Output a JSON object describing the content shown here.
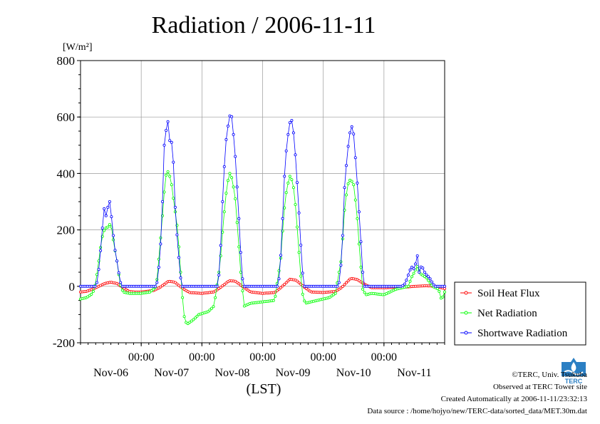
{
  "chart_data": {
    "type": "line",
    "title": "Radiation / 2006-11-11",
    "ylabel": "[W/m²]",
    "xlabel": "(LST)",
    "ylim": [
      -200,
      800
    ],
    "yticks": [
      -200,
      0,
      200,
      400,
      600,
      800
    ],
    "xlim": [
      0,
      6
    ],
    "xtick_time_label": "00:00",
    "xticks": [
      1,
      2,
      3,
      4,
      5
    ],
    "day_labels": [
      "Nov-06",
      "Nov-07",
      "Nov-08",
      "Nov-09",
      "Nov-10",
      "Nov-11"
    ],
    "x_unit": "days since Nov-06 00:00",
    "grid": true,
    "legend_position": "right",
    "series": [
      {
        "name": "Soil Heat Flux",
        "color": "#ff0000",
        "points": [
          [
            0,
            -20
          ],
          [
            0.1,
            -18
          ],
          [
            0.2,
            -10
          ],
          [
            0.3,
            0
          ],
          [
            0.4,
            10
          ],
          [
            0.5,
            15
          ],
          [
            0.6,
            10
          ],
          [
            0.7,
            -5
          ],
          [
            0.8,
            -18
          ],
          [
            0.9,
            -20
          ],
          [
            1.0,
            -20
          ],
          [
            1.2,
            -15
          ],
          [
            1.3,
            -5
          ],
          [
            1.45,
            18
          ],
          [
            1.55,
            15
          ],
          [
            1.7,
            -10
          ],
          [
            1.8,
            -22
          ],
          [
            2.0,
            -25
          ],
          [
            2.2,
            -20
          ],
          [
            2.3,
            -5
          ],
          [
            2.45,
            20
          ],
          [
            2.55,
            18
          ],
          [
            2.7,
            -5
          ],
          [
            2.8,
            -20
          ],
          [
            3.0,
            -25
          ],
          [
            3.2,
            -22
          ],
          [
            3.3,
            -5
          ],
          [
            3.45,
            25
          ],
          [
            3.55,
            22
          ],
          [
            3.7,
            -5
          ],
          [
            3.8,
            -20
          ],
          [
            4.0,
            -22
          ],
          [
            4.2,
            -18
          ],
          [
            4.3,
            -5
          ],
          [
            4.45,
            28
          ],
          [
            4.55,
            25
          ],
          [
            4.7,
            5
          ],
          [
            4.8,
            -5
          ],
          [
            5.0,
            -5
          ],
          [
            5.4,
            -2
          ],
          [
            5.5,
            0
          ],
          [
            5.7,
            2
          ],
          [
            5.85,
            0
          ],
          [
            6.0,
            -8
          ]
        ]
      },
      {
        "name": "Net Radiation",
        "color": "#00ff00",
        "points": [
          [
            0,
            -45
          ],
          [
            0.1,
            -40
          ],
          [
            0.2,
            -25
          ],
          [
            0.25,
            10
          ],
          [
            0.3,
            90
          ],
          [
            0.35,
            170
          ],
          [
            0.4,
            205
          ],
          [
            0.45,
            210
          ],
          [
            0.5,
            225
          ],
          [
            0.55,
            150
          ],
          [
            0.6,
            90
          ],
          [
            0.65,
            10
          ],
          [
            0.7,
            -20
          ],
          [
            0.8,
            -25
          ],
          [
            1.0,
            -25
          ],
          [
            1.15,
            -20
          ],
          [
            1.25,
            0
          ],
          [
            1.3,
            120
          ],
          [
            1.35,
            250
          ],
          [
            1.4,
            390
          ],
          [
            1.45,
            410
          ],
          [
            1.5,
            360
          ],
          [
            1.55,
            280
          ],
          [
            1.6,
            200
          ],
          [
            1.65,
            50
          ],
          [
            1.7,
            -100
          ],
          [
            1.75,
            -135
          ],
          [
            1.85,
            -120
          ],
          [
            1.95,
            -100
          ],
          [
            2.1,
            -90
          ],
          [
            2.2,
            -70
          ],
          [
            2.3,
            80
          ],
          [
            2.35,
            220
          ],
          [
            2.4,
            330
          ],
          [
            2.45,
            405
          ],
          [
            2.5,
            380
          ],
          [
            2.55,
            310
          ],
          [
            2.6,
            170
          ],
          [
            2.65,
            20
          ],
          [
            2.7,
            -70
          ],
          [
            2.8,
            -60
          ],
          [
            3.0,
            -55
          ],
          [
            3.2,
            -50
          ],
          [
            3.3,
            100
          ],
          [
            3.35,
            260
          ],
          [
            3.4,
            350
          ],
          [
            3.45,
            390
          ],
          [
            3.5,
            370
          ],
          [
            3.55,
            270
          ],
          [
            3.6,
            120
          ],
          [
            3.65,
            -20
          ],
          [
            3.7,
            -60
          ],
          [
            3.9,
            -50
          ],
          [
            4.1,
            -40
          ],
          [
            4.2,
            -25
          ],
          [
            4.3,
            100
          ],
          [
            4.35,
            270
          ],
          [
            4.4,
            360
          ],
          [
            4.45,
            380
          ],
          [
            4.5,
            360
          ],
          [
            4.55,
            270
          ],
          [
            4.6,
            120
          ],
          [
            4.65,
            -10
          ],
          [
            4.7,
            -30
          ],
          [
            4.8,
            -25
          ],
          [
            5.0,
            -30
          ],
          [
            5.2,
            -10
          ],
          [
            5.4,
            0
          ],
          [
            5.45,
            30
          ],
          [
            5.5,
            50
          ],
          [
            5.55,
            70
          ],
          [
            5.6,
            45
          ],
          [
            5.7,
            30
          ],
          [
            5.8,
            0
          ],
          [
            5.9,
            -10
          ],
          [
            5.95,
            -50
          ],
          [
            6.0,
            -20
          ]
        ]
      },
      {
        "name": "Shortwave Radiation",
        "color": "#0000ff",
        "points": [
          [
            0,
            0
          ],
          [
            0.25,
            0
          ],
          [
            0.28,
            20
          ],
          [
            0.32,
            100
          ],
          [
            0.35,
            180
          ],
          [
            0.38,
            260
          ],
          [
            0.4,
            290
          ],
          [
            0.42,
            250
          ],
          [
            0.45,
            280
          ],
          [
            0.48,
            300
          ],
          [
            0.5,
            270
          ],
          [
            0.53,
            200
          ],
          [
            0.56,
            140
          ],
          [
            0.6,
            90
          ],
          [
            0.65,
            20
          ],
          [
            0.68,
            0
          ],
          [
            1.0,
            0
          ],
          [
            1.25,
            0
          ],
          [
            1.28,
            40
          ],
          [
            1.32,
            150
          ],
          [
            1.35,
            300
          ],
          [
            1.38,
            500
          ],
          [
            1.42,
            570
          ],
          [
            1.45,
            590
          ],
          [
            1.48,
            480
          ],
          [
            1.5,
            510
          ],
          [
            1.53,
            440
          ],
          [
            1.56,
            280
          ],
          [
            1.6,
            150
          ],
          [
            1.65,
            30
          ],
          [
            1.68,
            0
          ],
          [
            2.0,
            0
          ],
          [
            2.25,
            0
          ],
          [
            2.28,
            40
          ],
          [
            2.32,
            180
          ],
          [
            2.35,
            360
          ],
          [
            2.4,
            520
          ],
          [
            2.45,
            600
          ],
          [
            2.48,
            612
          ],
          [
            2.5,
            590
          ],
          [
            2.55,
            460
          ],
          [
            2.6,
            280
          ],
          [
            2.65,
            80
          ],
          [
            2.68,
            0
          ],
          [
            3.0,
            0
          ],
          [
            3.25,
            0
          ],
          [
            3.28,
            40
          ],
          [
            3.32,
            180
          ],
          [
            3.35,
            360
          ],
          [
            3.4,
            510
          ],
          [
            3.45,
            580
          ],
          [
            3.48,
            588
          ],
          [
            3.5,
            570
          ],
          [
            3.55,
            440
          ],
          [
            3.6,
            260
          ],
          [
            3.65,
            70
          ],
          [
            3.68,
            0
          ],
          [
            4.0,
            0
          ],
          [
            4.25,
            0
          ],
          [
            4.28,
            40
          ],
          [
            4.32,
            180
          ],
          [
            4.35,
            350
          ],
          [
            4.4,
            480
          ],
          [
            4.45,
            560
          ],
          [
            4.48,
            568
          ],
          [
            4.5,
            540
          ],
          [
            4.55,
            400
          ],
          [
            4.6,
            230
          ],
          [
            4.65,
            50
          ],
          [
            4.68,
            0
          ],
          [
            5.0,
            0
          ],
          [
            5.3,
            0
          ],
          [
            5.35,
            10
          ],
          [
            5.4,
            40
          ],
          [
            5.45,
            70
          ],
          [
            5.5,
            60
          ],
          [
            5.55,
            108
          ],
          [
            5.58,
            50
          ],
          [
            5.62,
            75
          ],
          [
            5.68,
            45
          ],
          [
            5.75,
            30
          ],
          [
            5.82,
            5
          ],
          [
            5.85,
            0
          ],
          [
            6.0,
            0
          ]
        ]
      }
    ]
  },
  "footer": {
    "credit": "©TERC, Univ. Tsukuba",
    "site": "Observed at TERC Tower site",
    "created": "Created Automatically at 2006-11-11/23:32:13",
    "source": "Data source : /home/hojyo/new/TERC-data/sorted_data/MET.30m.dat"
  },
  "logo": {
    "text": "TERC",
    "color": "#2b7fc3"
  }
}
